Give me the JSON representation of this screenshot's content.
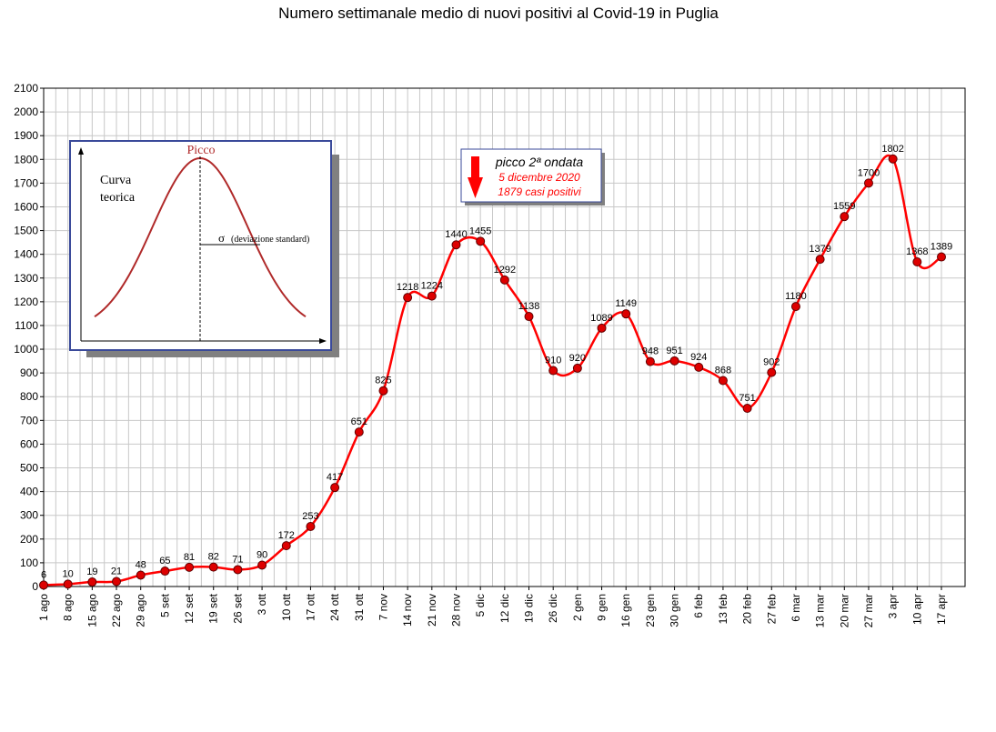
{
  "chart_data": {
    "type": "line",
    "title": "Numero settimanale medio di nuovi positivi al Covid-19 in Puglia",
    "xlabel": "",
    "ylabel": "",
    "ylim": [
      0,
      2100
    ],
    "ytick_step": 100,
    "grid": true,
    "categories": [
      "1 ago",
      "8 ago",
      "15 ago",
      "22 ago",
      "29 ago",
      "5 set",
      "12 set",
      "19 set",
      "26 set",
      "3 ott",
      "10 ott",
      "17 ott",
      "24 ott",
      "31 ott",
      "7 nov",
      "14 nov",
      "21 nov",
      "28 nov",
      "5 dic",
      "12 dic",
      "19 dic",
      "26 dic",
      "2 gen",
      "9 gen",
      "16 gen",
      "23 gen",
      "30 gen",
      "6 feb",
      "13 feb",
      "20 feb",
      "27 feb",
      "6 mar",
      "13 mar",
      "20 mar",
      "27 mar",
      "3 apr",
      "10 apr",
      "17 apr"
    ],
    "series": [
      {
        "values": [
          6,
          10,
          19,
          21,
          48,
          65,
          81,
          82,
          71,
          90,
          172,
          253,
          417,
          651,
          825,
          1218,
          1224,
          1440,
          1455,
          1292,
          1138,
          910,
          920,
          1089,
          1149,
          948,
          951,
          924,
          868,
          751,
          902,
          1180,
          1379,
          1559,
          1700,
          1802,
          1368,
          1389
        ],
        "color": "#ff0000",
        "marker_color": "#dd0000"
      }
    ],
    "annotation": {
      "title": "picco 2ª ondata",
      "date": "5 dicembre 2020",
      "value_text": "1879 casi positivi",
      "arrow_color": "#ff0000"
    },
    "inset": {
      "peak_label": "Picco",
      "curve_label_line1": "Curva",
      "curve_label_line2": "teorica",
      "sigma_symbol": "σ",
      "sigma_label": "(deviazione standard)",
      "curve_color": "#b02a2a"
    }
  }
}
